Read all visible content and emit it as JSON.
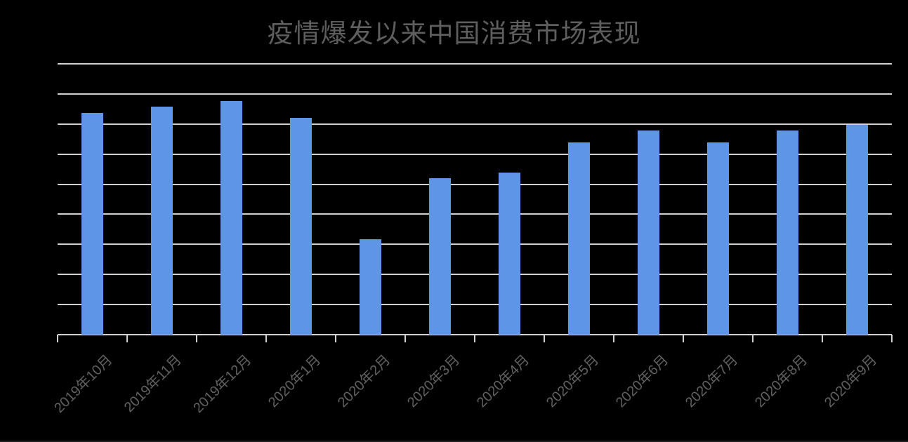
{
  "window": {
    "background_color": "#000000"
  },
  "chart_data": {
    "type": "bar",
    "title": "疫情爆发以来中国消费市场表现",
    "categories": [
      "2019年10月",
      "2019年11月",
      "2019年12月",
      "2020年1月",
      "2020年2月",
      "2020年3月",
      "2020年4月",
      "2020年5月",
      "2020年6月",
      "2020年7月",
      "2020年8月",
      "2020年9月"
    ],
    "values": [
      7.36,
      7.57,
      7.77,
      7.2,
      3.18,
      5.19,
      5.39,
      6.38,
      6.78,
      6.38,
      6.78,
      6.97
    ],
    "xlabel": "",
    "ylabel": "",
    "ylim": [
      0,
      9
    ],
    "y_gridline_interval": 1,
    "y_tick_labels_visible": false,
    "grid": true,
    "legend": false,
    "x_label_rotation_deg": 45,
    "colors": {
      "bar": "#5E95E6",
      "gridline": "#D2D0D0",
      "axis": "#D2D0D0",
      "title_text": "#5E5E5E",
      "x_label_text": "#616161"
    }
  }
}
